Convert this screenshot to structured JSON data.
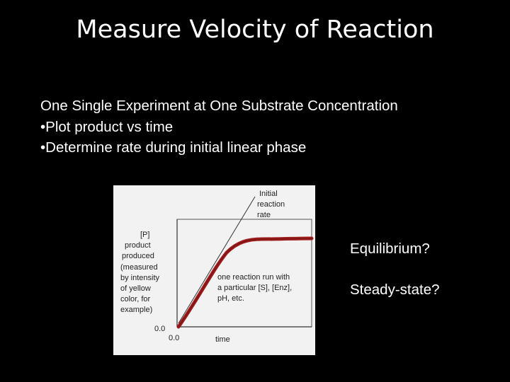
{
  "title": "Measure Velocity of Reaction",
  "bullets": [
    "One Single Experiment at One Substrate Concentration",
    "•Plot product vs time",
    "•Determine rate during initial linear phase"
  ],
  "figure": {
    "initial_rate_label": [
      "Initial",
      "reaction",
      "rate"
    ],
    "y_axis_label": [
      "[P]",
      "product",
      "produced",
      "(measured",
      "by intensity",
      "of yellow",
      "color, for",
      "example)"
    ],
    "run_note": [
      "one reaction run with",
      "a particular [S], [Enz],",
      "pH, etc."
    ],
    "y_origin": "0.0",
    "x_origin": "0.0",
    "x_axis_label": "time",
    "curve_color": "#9e1b1b"
  },
  "annotations": {
    "equilibrium": "Equilibrium?",
    "steady_state": "Steady-state?"
  }
}
